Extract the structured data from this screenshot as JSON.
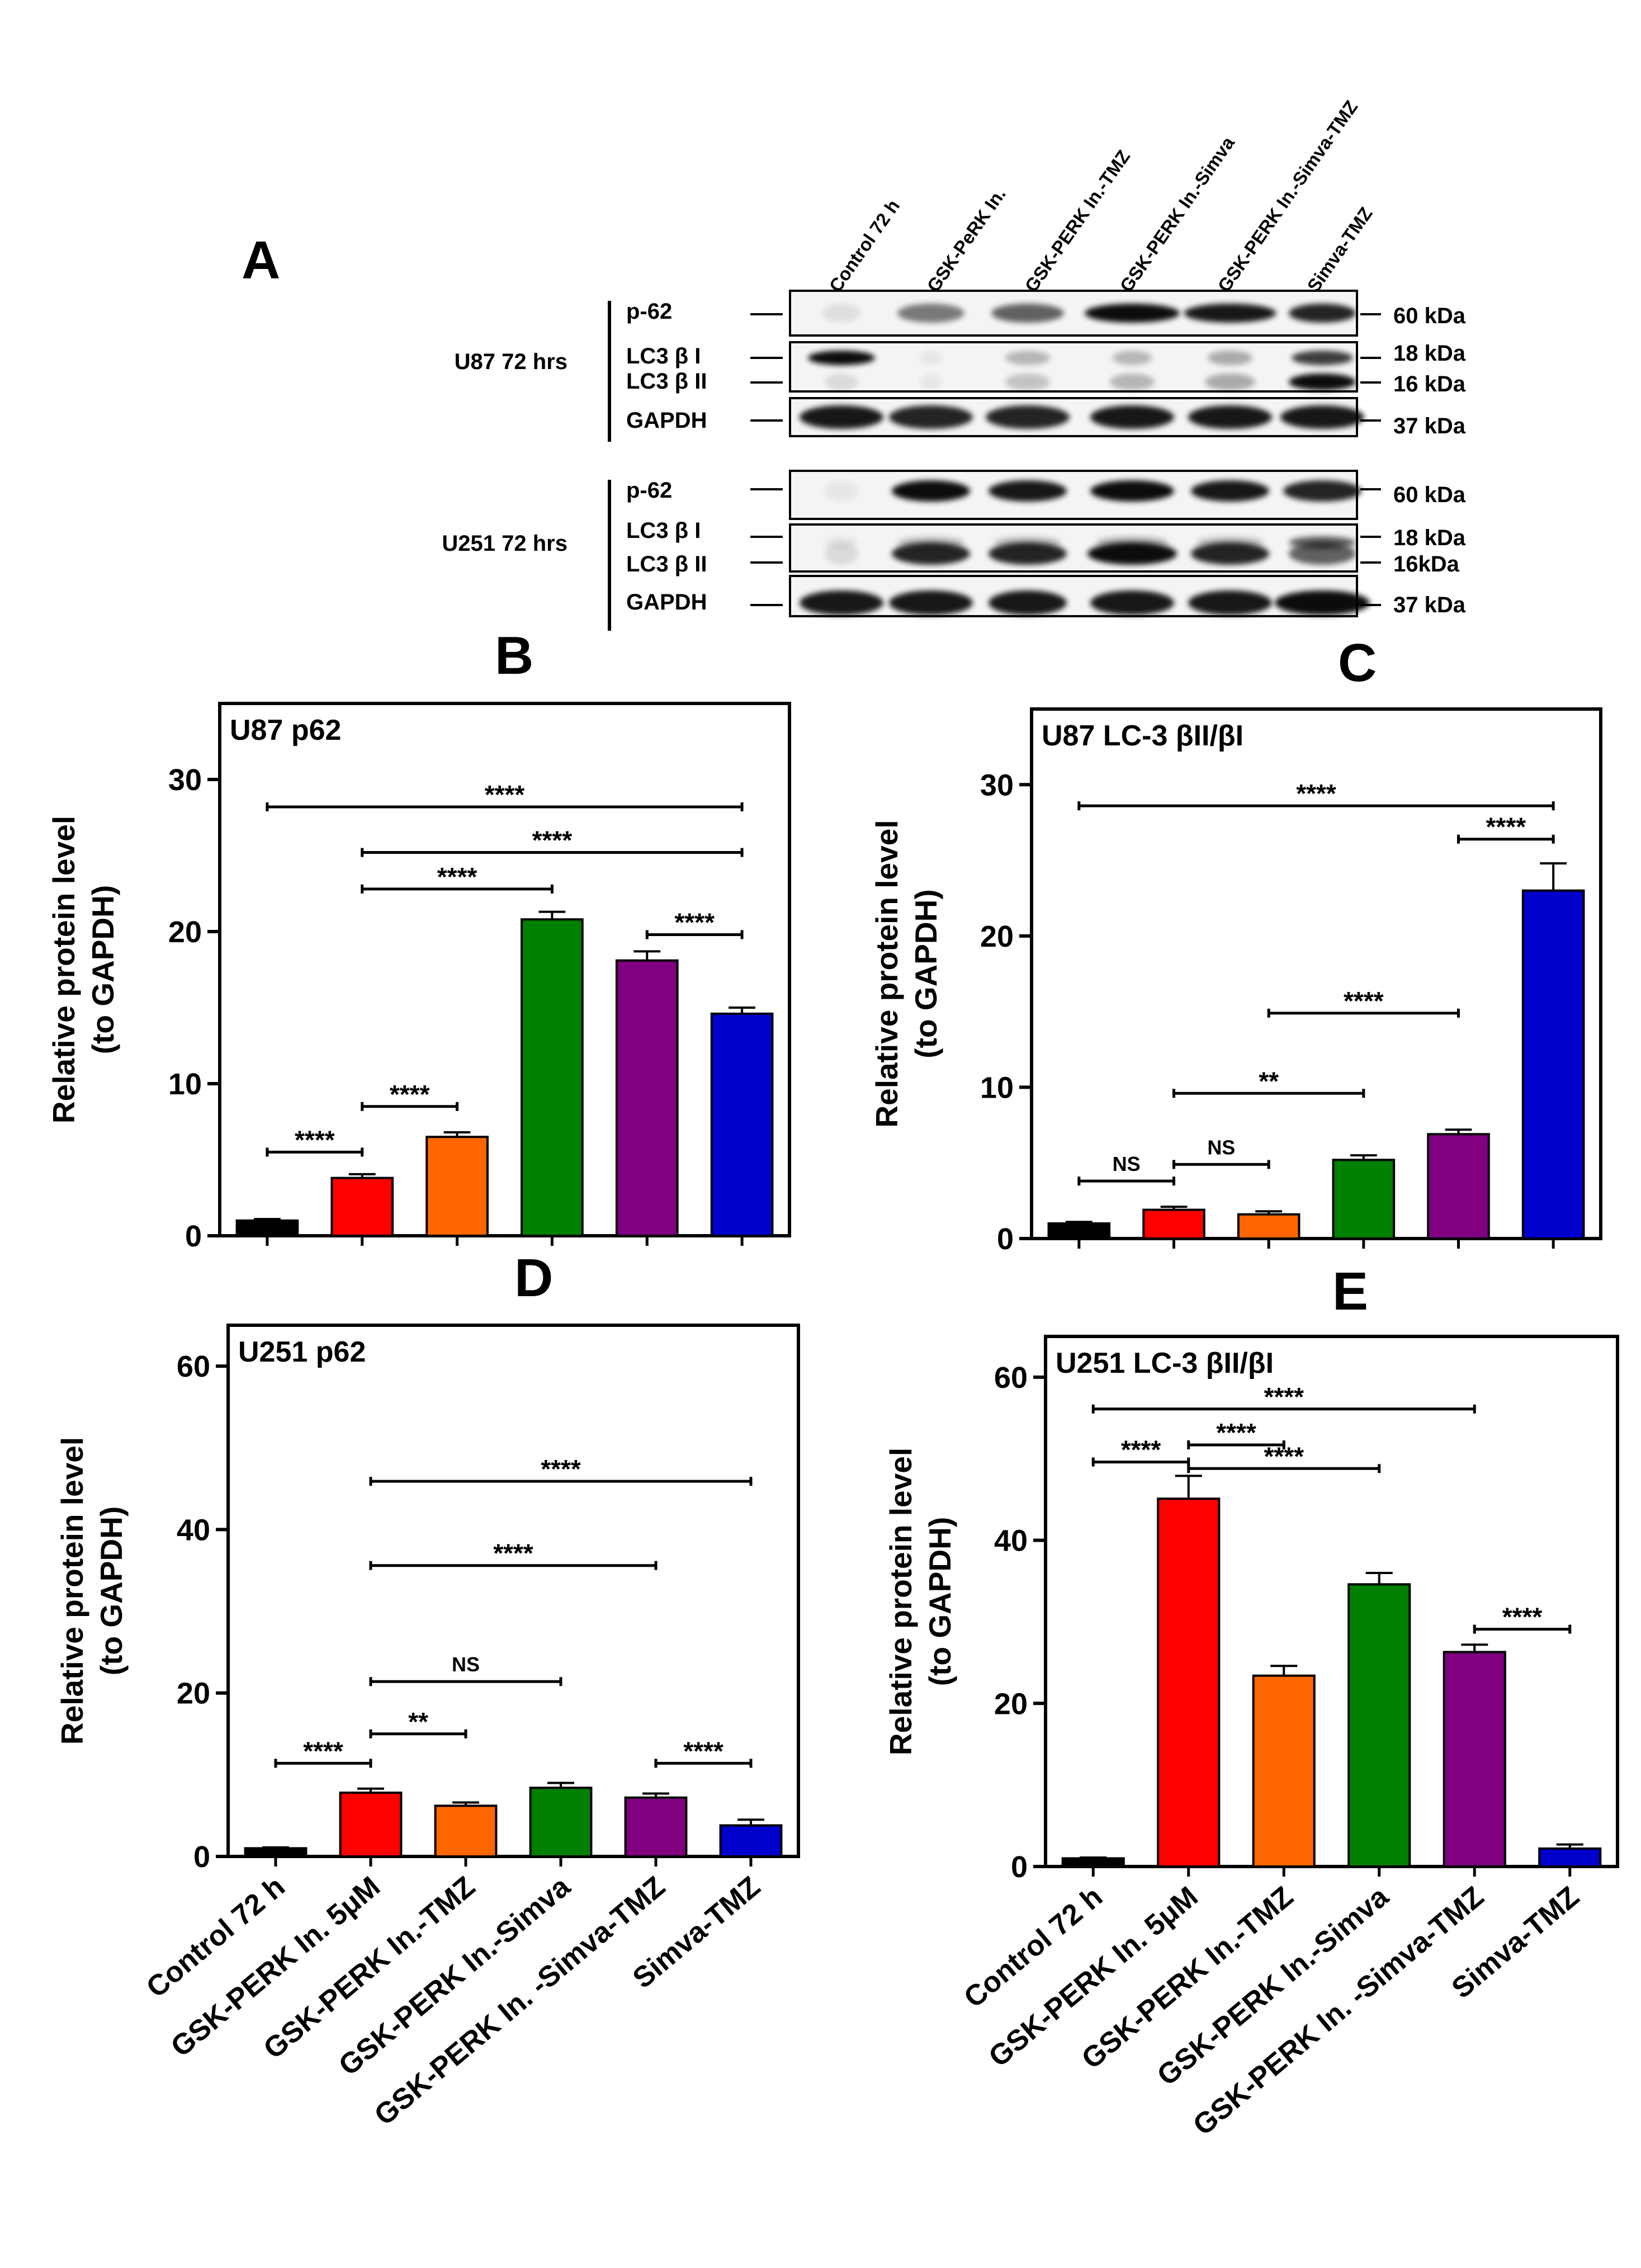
{
  "colors": [
    "#000000",
    "#ff0000",
    "#ff6600",
    "#008000",
    "#800080",
    "#0000cc"
  ],
  "blot": {
    "label": "A",
    "lanes": [
      "Control 72 h",
      "GSK-PeRK In.",
      "GSK-PERK In.-TMZ",
      "GSK-PERK In.-Simva",
      "GSK-PERK In.-Simva-TMZ",
      "Simva-TMZ"
    ],
    "groups": [
      {
        "cell": "U87 72 hrs",
        "proteins": [
          "p-62",
          "LC3 β I",
          "LC3 β II",
          "GAPDH"
        ],
        "kda": [
          "60 kDa",
          "18 kDa",
          "16 kDa",
          "37 kDa"
        ]
      },
      {
        "cell": "U251 72 hrs",
        "proteins": [
          "p-62",
          "LC3 β I",
          "LC3 β II",
          "GAPDH"
        ],
        "kda": [
          "60 kDa",
          "18 kDa",
          "16kDa",
          "37 kDa"
        ]
      }
    ]
  },
  "chart_data": [
    {
      "panel": "B",
      "type": "bar",
      "title": "U87  p62",
      "ylabel": [
        "Relative protein level",
        "(to GAPDH)"
      ],
      "ylim": [
        0,
        35
      ],
      "yticks": [
        0,
        10,
        20,
        30
      ],
      "categories": [
        "Control 72 h",
        "GSK-PERK In. 5μM",
        "GSK-PERK In.-TMZ",
        "GSK-PERK In.-Simva",
        "GSK-PERK In. -Simva-TMZ",
        "Simva-TMZ"
      ],
      "values": [
        1.0,
        3.8,
        6.5,
        20.8,
        18.1,
        14.6
      ],
      "errors": [
        0.1,
        0.25,
        0.3,
        0.5,
        0.6,
        0.4
      ],
      "significance": [
        {
          "from": 0,
          "to": 1,
          "y": 5.5,
          "label": "****"
        },
        {
          "from": 1,
          "to": 2,
          "y": 8.5,
          "label": "****"
        },
        {
          "from": 1,
          "to": 3,
          "y": 22.8,
          "label": "****"
        },
        {
          "from": 1,
          "to": 5,
          "y": 25.2,
          "label": "****"
        },
        {
          "from": 0,
          "to": 5,
          "y": 28.2,
          "label": "****"
        },
        {
          "from": 4,
          "to": 5,
          "y": 19.8,
          "label": "****"
        }
      ]
    },
    {
      "panel": "C",
      "type": "bar",
      "title": "U87  LC-3 βII/βI",
      "ylabel": [
        "Relative protein level",
        "(to GAPDH)"
      ],
      "ylim": [
        0,
        35
      ],
      "yticks": [
        0,
        10,
        20,
        30
      ],
      "categories": [
        "Control 72 h",
        "GSK-PERK In. 5μM",
        "GSK-PERK In.-TMZ",
        "GSK-PERK In.-Simva",
        "GSK-PERK In. -Simva-TMZ",
        "Simva-TMZ"
      ],
      "values": [
        1.0,
        1.9,
        1.6,
        5.2,
        6.9,
        23.0
      ],
      "errors": [
        0.1,
        0.2,
        0.2,
        0.3,
        0.3,
        1.8
      ],
      "significance": [
        {
          "from": 0,
          "to": 1,
          "y": 3.8,
          "label": "NS"
        },
        {
          "from": 1,
          "to": 2,
          "y": 4.9,
          "label": "NS"
        },
        {
          "from": 1,
          "to": 3,
          "y": 9.6,
          "label": "**"
        },
        {
          "from": 2,
          "to": 4,
          "y": 14.9,
          "label": "****"
        },
        {
          "from": 0,
          "to": 5,
          "y": 28.6,
          "label": "****"
        },
        {
          "from": 4,
          "to": 5,
          "y": 26.4,
          "label": "****"
        }
      ]
    },
    {
      "panel": "D",
      "type": "bar",
      "title": "U251 p62",
      "ylabel": [
        "Relative protein level",
        "(to GAPDH)"
      ],
      "ylim": [
        0,
        65
      ],
      "yticks": [
        0,
        20,
        40,
        60
      ],
      "categories": [
        "Control 72 h",
        "GSK-PERK In. 5μM",
        "GSK-PERK In.-TMZ",
        "GSK-PERK In.-Simva",
        "GSK-PERK In. -Simva-TMZ",
        "Simva-TMZ"
      ],
      "values": [
        1.0,
        7.8,
        6.2,
        8.4,
        7.2,
        3.8
      ],
      "errors": [
        0.1,
        0.5,
        0.4,
        0.6,
        0.5,
        0.7
      ],
      "significance": [
        {
          "from": 0,
          "to": 1,
          "y": 11.4,
          "label": "****"
        },
        {
          "from": 1,
          "to": 2,
          "y": 15.0,
          "label": "**"
        },
        {
          "from": 1,
          "to": 3,
          "y": 21.4,
          "label": "NS"
        },
        {
          "from": 1,
          "to": 4,
          "y": 35.6,
          "label": "****"
        },
        {
          "from": 1,
          "to": 5,
          "y": 45.9,
          "label": "****"
        },
        {
          "from": 4,
          "to": 5,
          "y": 11.4,
          "label": "****"
        }
      ]
    },
    {
      "panel": "E",
      "type": "bar",
      "title": "U251  LC-3 βII/βI",
      "ylabel": [
        "Relative protein level",
        "(to GAPDH)"
      ],
      "ylim": [
        0,
        65
      ],
      "yticks": [
        0,
        20,
        40,
        60
      ],
      "categories": [
        "Control 72 h",
        "GSK-PERK In. 5μM",
        "GSK-PERK In.-TMZ",
        "GSK-PERK In.-Simva",
        "GSK-PERK In. -Simva-TMZ",
        "Simva-TMZ"
      ],
      "values": [
        1.0,
        45.1,
        23.4,
        34.6,
        26.3,
        2.2
      ],
      "errors": [
        0.1,
        2.8,
        1.2,
        1.4,
        0.9,
        0.5
      ],
      "significance": [
        {
          "from": 0,
          "to": 1,
          "y": 49.6,
          "label": "****"
        },
        {
          "from": 1,
          "to": 2,
          "y": 51.7,
          "label": "****"
        },
        {
          "from": 1,
          "to": 3,
          "y": 48.8,
          "label": "****"
        },
        {
          "from": 0,
          "to": 4,
          "y": 56.1,
          "label": "****"
        },
        {
          "from": 4,
          "to": 5,
          "y": 29.1,
          "label": "****"
        }
      ]
    }
  ]
}
